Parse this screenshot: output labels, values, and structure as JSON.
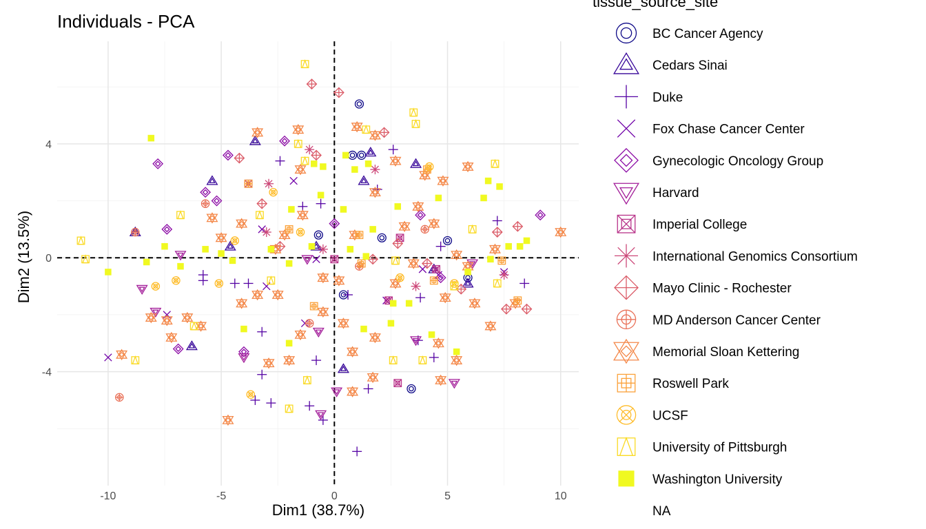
{
  "chart_data": {
    "type": "scatter",
    "title": "Individuals - PCA",
    "xlabel": "Dim1 (38.7%)",
    "ylabel": "Dim2 (13.5%)",
    "xlim": [
      -12.25,
      10.8
    ],
    "ylim": [
      -8.0,
      7.6
    ],
    "xticks": [
      -10,
      -5,
      0,
      5,
      10
    ],
    "xtick_labels": [
      "-10",
      "-5",
      "0",
      "5",
      "10"
    ],
    "yticks": [
      -4,
      0,
      4
    ],
    "ytick_labels": [
      "-4",
      "0",
      "4"
    ],
    "grid": true,
    "reference_lines": {
      "x": 0,
      "y": 0,
      "style": "dashed"
    },
    "legend": {
      "title": "tissue_source_site",
      "placement": "right",
      "entries": [
        "BC Cancer Agency",
        "Cedars Sinai",
        "Duke",
        "Fox Chase Cancer Center",
        "Gynecologic Oncology Group",
        "Harvard",
        "Imperial College",
        "International Genomics Consortium",
        "Mayo Clinic - Rochester",
        "MD Anderson Cancer Center",
        "Memorial Sloan Kettering",
        "Roswell Park",
        "UCSF",
        "University of Pittsburgh",
        "Washington University",
        "NA"
      ],
      "colors": [
        "#0D0887",
        "#350498",
        "#5402A3",
        "#7000A8",
        "#8B0AA5",
        "#A31E9A",
        "#B83289",
        "#CC4778",
        "#DB5C68",
        "#E97158",
        "#F48849",
        "#FBA139",
        "#FEBC2A",
        "#FADA24",
        "#F0F921",
        ""
      ],
      "shapes": [
        "circle-ring",
        "triangle-double",
        "plus",
        "cross",
        "diamond-double",
        "triangle-down-double",
        "square-x",
        "asterisk",
        "diamond-plus",
        "circle-plus",
        "star-of-david",
        "square-grid",
        "circle-x",
        "square-triangle",
        "square-filled",
        "none"
      ]
    },
    "series": [
      {
        "name": "BC Cancer Agency",
        "points": [
          [
            1.1,
            5.4
          ],
          [
            1.2,
            3.6
          ],
          [
            5.0,
            0.6
          ],
          [
            3.4,
            -4.6
          ],
          [
            5.9,
            -0.7
          ],
          [
            0.4,
            -1.3
          ],
          [
            -0.7,
            0.8
          ],
          [
            0.8,
            3.6
          ],
          [
            2.1,
            0.7
          ]
        ]
      },
      {
        "name": "Cedars Sinai",
        "points": [
          [
            -8.8,
            0.9
          ],
          [
            -4.6,
            0.4
          ],
          [
            -5.4,
            2.7
          ],
          [
            -3.5,
            4.1
          ],
          [
            1.6,
            3.7
          ],
          [
            3.6,
            3.3
          ],
          [
            1.3,
            2.7
          ],
          [
            0.4,
            -3.9
          ],
          [
            -6.3,
            -3.1
          ],
          [
            5.9,
            -0.9
          ],
          [
            -0.8,
            0.4
          ],
          [
            4.4,
            -0.4
          ]
        ]
      },
      {
        "name": "Duke",
        "points": [
          [
            -5.8,
            -0.8
          ],
          [
            -5.8,
            -0.6
          ],
          [
            -3.8,
            -0.9
          ],
          [
            -3.2,
            -2.6
          ],
          [
            -3.2,
            -4.1
          ],
          [
            -3.5,
            -5.0
          ],
          [
            -2.8,
            -5.1
          ],
          [
            -1.1,
            -5.2
          ],
          [
            -0.5,
            -5.7
          ],
          [
            1.0,
            -6.8
          ],
          [
            1.5,
            -4.6
          ],
          [
            2.6,
            3.8
          ],
          [
            1.9,
            2.4
          ],
          [
            -0.6,
            1.9
          ],
          [
            -1.4,
            1.8
          ],
          [
            -2.4,
            3.4
          ],
          [
            0.6,
            -1.3
          ],
          [
            4.7,
            0.4
          ],
          [
            7.2,
            1.3
          ],
          [
            8.4,
            -0.9
          ],
          [
            3.8,
            -1.4
          ],
          [
            -0.8,
            -3.6
          ],
          [
            4.4,
            -3.5
          ],
          [
            3.7,
            -2.9
          ],
          [
            -4.4,
            -0.9
          ]
        ]
      },
      {
        "name": "Fox Chase Cancer Center",
        "points": [
          [
            -10,
            -3.5
          ],
          [
            -7.4,
            -2.0
          ],
          [
            -1.8,
            2.7
          ],
          [
            -3.0,
            -1.0
          ],
          [
            -3.2,
            1.0
          ],
          [
            -0.8,
            -0.05
          ],
          [
            2.3,
            -1.5
          ],
          [
            3.9,
            -0.4
          ],
          [
            7.5,
            -0.5
          ],
          [
            4.6,
            -0.6
          ],
          [
            -1.3,
            -2.3
          ]
        ]
      },
      {
        "name": "Gynecologic Oncology Group",
        "points": [
          [
            -7.8,
            3.3
          ],
          [
            -7.4,
            1.0
          ],
          [
            -6.9,
            -3.2
          ],
          [
            -5.2,
            2.0
          ],
          [
            -4.7,
            3.6
          ],
          [
            -2.2,
            4.1
          ],
          [
            -4.0,
            -3.3
          ],
          [
            9.1,
            1.5
          ],
          [
            0.0,
            1.2
          ],
          [
            3.8,
            1.5
          ],
          [
            4.7,
            -0.7
          ],
          [
            -5.7,
            2.3
          ]
        ]
      },
      {
        "name": "Harvard",
        "points": [
          [
            -8.5,
            -1.1
          ],
          [
            -7.9,
            -1.9
          ],
          [
            -6.8,
            0.1
          ],
          [
            -0.7,
            -2.6
          ],
          [
            -0.6,
            -5.5
          ],
          [
            0.1,
            -4.7
          ],
          [
            5.3,
            -4.4
          ],
          [
            -4.0,
            -3.5
          ],
          [
            6.1,
            -0.2
          ],
          [
            3.6,
            -2.9
          ],
          [
            -1.2,
            -0.05
          ]
        ]
      },
      {
        "name": "Imperial College",
        "points": [
          [
            -3.8,
            2.6
          ],
          [
            2.8,
            -4.4
          ],
          [
            2.4,
            -1.5
          ],
          [
            4.5,
            -0.4
          ],
          [
            0,
            -0.05
          ],
          [
            2.9,
            0.7
          ]
        ]
      },
      {
        "name": "International Genomics Consortium",
        "points": [
          [
            -3.0,
            0.9
          ],
          [
            -2.9,
            2.6
          ],
          [
            -1.1,
            3.8
          ],
          [
            -0.5,
            0.3
          ],
          [
            7.5,
            -0.6
          ],
          [
            1.8,
            3.1
          ],
          [
            3.6,
            -1.0
          ]
        ]
      },
      {
        "name": "Mayo Clinic - Rochester",
        "points": [
          [
            -1.0,
            6.1
          ],
          [
            0.2,
            5.8
          ],
          [
            7.2,
            0.9
          ],
          [
            8.1,
            1.1
          ],
          [
            8.5,
            -1.8
          ],
          [
            7.6,
            -1.8
          ],
          [
            -4.2,
            3.5
          ],
          [
            -0.8,
            3.6
          ],
          [
            1.7,
            -0.05
          ],
          [
            2.8,
            0.5
          ],
          [
            4.1,
            -0.2
          ],
          [
            5.6,
            -1.1
          ],
          [
            -2.4,
            0.4
          ],
          [
            -3.2,
            1.9
          ],
          [
            2.2,
            4.4
          ]
        ]
      },
      {
        "name": "MD Anderson Cancer Center",
        "points": [
          [
            -9.5,
            -4.9
          ],
          [
            -5.7,
            1.9
          ],
          [
            -8.8,
            0.9
          ],
          [
            -1.1,
            -2.3
          ],
          [
            4.0,
            1.0
          ],
          [
            1.1,
            -0.3
          ]
        ]
      },
      {
        "name": "Memorial Sloan Kettering",
        "points": [
          [
            10.0,
            0.9
          ],
          [
            -4.7,
            -5.7
          ],
          [
            -9.4,
            -3.4
          ],
          [
            -8.1,
            -2.1
          ],
          [
            -7.2,
            -2.8
          ],
          [
            -6.5,
            -2.1
          ],
          [
            -3.4,
            4.4
          ],
          [
            -1.6,
            4.5
          ],
          [
            1.0,
            4.6
          ],
          [
            1.8,
            4.3
          ],
          [
            2.7,
            3.4
          ],
          [
            4.0,
            2.9
          ],
          [
            5.9,
            3.2
          ],
          [
            4.8,
            2.7
          ],
          [
            5.9,
            -0.3
          ],
          [
            6.9,
            -2.4
          ],
          [
            6.2,
            -1.6
          ],
          [
            8.0,
            -1.6
          ],
          [
            4.6,
            -3.0
          ],
          [
            5.4,
            -3.6
          ],
          [
            4.7,
            -4.3
          ],
          [
            0.8,
            -4.7
          ],
          [
            1.7,
            -4.2
          ],
          [
            0.8,
            -3.3
          ],
          [
            1.8,
            -2.8
          ],
          [
            0.4,
            -2.3
          ],
          [
            -0.5,
            -1.9
          ],
          [
            -1.5,
            -2.7
          ],
          [
            -2.5,
            -1.3
          ],
          [
            -3.4,
            -1.3
          ],
          [
            -4.1,
            -1.6
          ],
          [
            -2.9,
            -3.7
          ],
          [
            -2.0,
            -3.6
          ],
          [
            -5.9,
            -2.4
          ],
          [
            -7.4,
            -2.2
          ],
          [
            -5.4,
            1.4
          ],
          [
            -5.0,
            0.7
          ],
          [
            -4.1,
            1.2
          ],
          [
            -1.5,
            3.1
          ],
          [
            -2.6,
            0.3
          ],
          [
            0.2,
            -0.8
          ],
          [
            -0.5,
            -0.7
          ],
          [
            3.5,
            -0.2
          ],
          [
            4.4,
            1.2
          ],
          [
            5.4,
            0.1
          ],
          [
            7.1,
            0.3
          ],
          [
            4.9,
            -1.4
          ],
          [
            2.7,
            -0.9
          ],
          [
            3.7,
            1.8
          ],
          [
            3.1,
            1.1
          ],
          [
            -2.2,
            0.8
          ],
          [
            -1.4,
            1.5
          ],
          [
            0.9,
            0.8
          ],
          [
            1.8,
            2.3
          ]
        ]
      },
      {
        "name": "Roswell Park",
        "points": [
          [
            -3.8,
            2.6
          ],
          [
            -0.9,
            -1.7
          ],
          [
            1.1,
            0.8
          ],
          [
            1.2,
            -0.2
          ],
          [
            4.4,
            -0.8
          ],
          [
            8.1,
            -1.5
          ],
          [
            7.4,
            -0.1
          ],
          [
            4.1,
            3.1
          ],
          [
            -2.0,
            1.0
          ]
        ]
      },
      {
        "name": "UCSF",
        "points": [
          [
            -1.5,
            0.9
          ],
          [
            -4.4,
            0.6
          ],
          [
            -2.7,
            2.3
          ],
          [
            2.9,
            -0.7
          ],
          [
            5.3,
            -0.9
          ],
          [
            -5.1,
            -0.9
          ],
          [
            -7.9,
            -1.0
          ],
          [
            -7.0,
            -0.8
          ],
          [
            -3.7,
            -4.8
          ],
          [
            4.2,
            3.2
          ]
        ]
      },
      {
        "name": "University of Pittsburgh",
        "points": [
          [
            -1.3,
            6.8
          ],
          [
            3.5,
            5.1
          ],
          [
            3.6,
            4.7
          ],
          [
            7.1,
            3.3
          ],
          [
            -11.2,
            0.6
          ],
          [
            -11.0,
            -0.05
          ],
          [
            -8.8,
            -3.6
          ],
          [
            -6.2,
            -2.4
          ],
          [
            -2.0,
            -5.3
          ],
          [
            -1.2,
            -4.3
          ],
          [
            -2.8,
            -0.8
          ],
          [
            1.4,
            4.5
          ],
          [
            -1.6,
            4.0
          ],
          [
            2.6,
            -3.6
          ],
          [
            3.9,
            -3.6
          ],
          [
            5.3,
            -1.0
          ],
          [
            7.2,
            -0.9
          ],
          [
            6.1,
            1.0
          ],
          [
            2.7,
            -0.1
          ],
          [
            -3.3,
            1.5
          ],
          [
            -6.8,
            1.5
          ],
          [
            -1.3,
            3.4
          ]
        ]
      },
      {
        "name": "Washington University",
        "points": [
          [
            -8.1,
            4.2
          ],
          [
            -10.0,
            -0.5
          ],
          [
            -8.3,
            -0.15
          ],
          [
            -7.5,
            0.4
          ],
          [
            -6.8,
            -0.3
          ],
          [
            -4.0,
            -2.5
          ],
          [
            -2.0,
            -3.0
          ],
          [
            1.3,
            -2.5
          ],
          [
            2.5,
            -2.3
          ],
          [
            2.6,
            -1.6
          ],
          [
            4.3,
            -2.7
          ],
          [
            5.4,
            -3.3
          ],
          [
            6.6,
            2.1
          ],
          [
            7.3,
            2.5
          ],
          [
            7.7,
            0.4
          ],
          [
            8.5,
            0.6
          ],
          [
            6.9,
            -0.05
          ],
          [
            3.3,
            -1.6
          ],
          [
            2.8,
            1.8
          ],
          [
            0.5,
            3.6
          ],
          [
            0.9,
            3.1
          ],
          [
            1.5,
            3.3
          ],
          [
            1.7,
            1.0
          ],
          [
            -0.5,
            3.2
          ],
          [
            -2.0,
            -0.2
          ],
          [
            -5.0,
            0.15
          ],
          [
            -5.7,
            0.3
          ],
          [
            -4.5,
            -0.1
          ],
          [
            -2.8,
            0.3
          ],
          [
            -1.0,
            0.4
          ],
          [
            0.7,
            0.3
          ],
          [
            1.4,
            0.05
          ],
          [
            0.4,
            1.7
          ],
          [
            -0.9,
            3.3
          ],
          [
            -0.6,
            2.2
          ],
          [
            -1.9,
            1.7
          ],
          [
            4.6,
            2.1
          ],
          [
            6.8,
            2.7
          ],
          [
            8.2,
            0.4
          ],
          [
            5.9,
            -0.5
          ]
        ]
      }
    ]
  }
}
